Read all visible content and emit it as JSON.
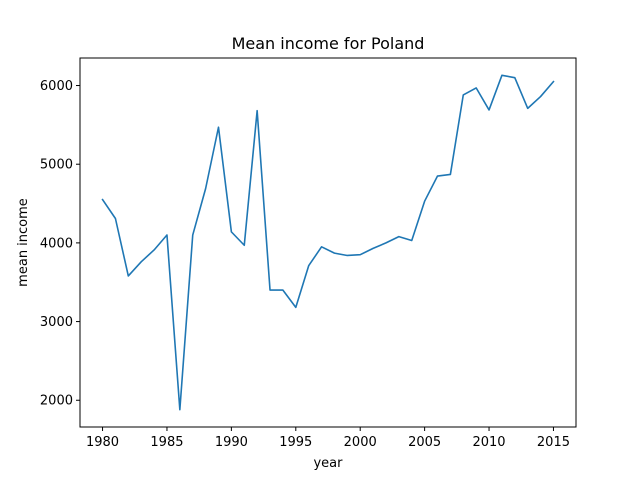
{
  "chart_data": {
    "type": "line",
    "title": "Mean income for Poland",
    "xlabel": "year",
    "ylabel": "mean income",
    "xlim": [
      1978.25,
      2016.75
    ],
    "ylim": [
      1660,
      6350
    ],
    "xticks": [
      1980,
      1985,
      1990,
      1995,
      2000,
      2005,
      2010,
      2015
    ],
    "yticks": [
      2000,
      3000,
      4000,
      5000,
      6000
    ],
    "grid": false,
    "legend": "none",
    "series": [
      {
        "color": "#1f77b4",
        "x": [
          1980,
          1981,
          1982,
          1983,
          1984,
          1985,
          1986,
          1987,
          1988,
          1989,
          1990,
          1991,
          1992,
          1993,
          1994,
          1995,
          1996,
          1997,
          1998,
          1999,
          2000,
          2001,
          2002,
          2003,
          2004,
          2005,
          2006,
          2007,
          2008,
          2009,
          2010,
          2011,
          2012,
          2013,
          2014,
          2015
        ],
        "y": [
          4550,
          4310,
          3580,
          3760,
          3910,
          4100,
          1880,
          4100,
          4690,
          5470,
          4140,
          3970,
          5680,
          3400,
          3400,
          3180,
          3710,
          3950,
          3870,
          3840,
          3850,
          3930,
          4000,
          4080,
          4030,
          4530,
          4850,
          4870,
          5880,
          5970,
          5690,
          6130,
          6100,
          5710,
          5860,
          6050
        ]
      }
    ]
  }
}
